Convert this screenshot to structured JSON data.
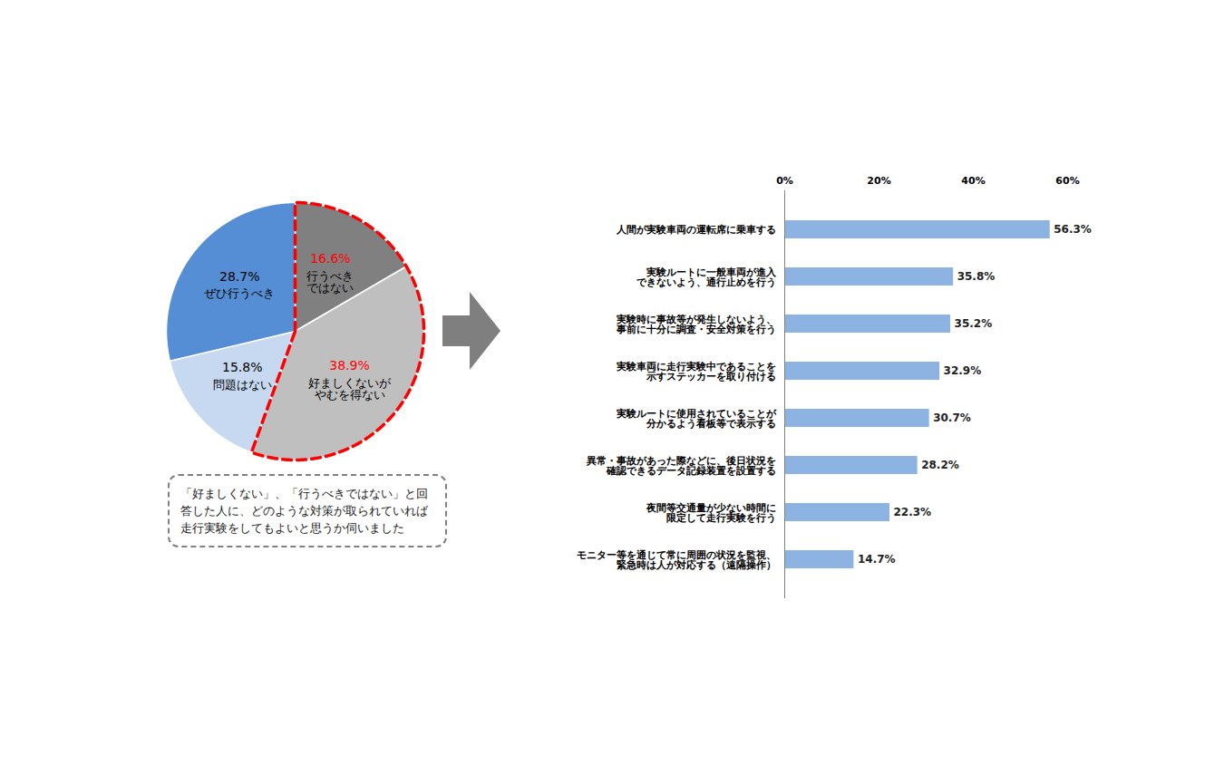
{
  "chart_data": [
    {
      "type": "pie",
      "categories": [
        "行うべき\nではない",
        "好ましくないが\nやむを得ない",
        "問題はない",
        "ぜひ行うべき"
      ],
      "values": [
        16.6,
        38.9,
        15.8,
        28.7
      ],
      "value_labels": [
        "16.6%",
        "38.9%",
        "15.8%",
        "28.7%"
      ],
      "colors": [
        "#808080",
        "#bfbfbf",
        "#c6d9f1",
        "#558ed5"
      ],
      "data_labels": true,
      "tick_labels": false,
      "annotations": [
        "「好ましくない」、「行うべきではない」と回答した人に、どのような対策が取られていれば走行実験をしてもよいと思うか伺いました"
      ]
    },
    {
      "type": "bar",
      "orientation": "horizontal",
      "categories": [
        "人間が実験車両の運転席に乗車する",
        "実験ルートに一般車両が進入\nできないよう、通行止めを行う",
        "実験時に事故等が発生しないよう、\n事前に十分に調査・安全対策を行う",
        "実験車両に走行実験中であることを\n示すステッカーを取り付ける",
        "実験ルートに使用されていることが\n分かるよう看板等で表示する",
        "異常・事故があった際などに、後日状況を\n確認できるデータ記録装置を設置する",
        "夜間等交通量が少ない時間に\n限定して走行実験を行う",
        "モニター等を通じて常に周囲の状況を監視、\n緊急時は人が対応する（遠隔操作）"
      ],
      "values": [
        56.3,
        35.8,
        35.2,
        32.9,
        30.7,
        28.2,
        22.3,
        14.7
      ],
      "value_labels": [
        "56.3%",
        "35.8%",
        "35.2%",
        "32.9%",
        "30.7%",
        "28.2%",
        "22.3%",
        "14.7%"
      ],
      "color": "#8db3e2",
      "xlim": [
        0,
        60
      ],
      "xticks": [
        {
          "value": 0,
          "label": "0%"
        },
        {
          "value": 20,
          "label": "20%"
        },
        {
          "value": 40,
          "label": "40%"
        },
        {
          "value": 60,
          "label": "60%"
        }
      ],
      "data_labels": true,
      "grid": false
    }
  ]
}
